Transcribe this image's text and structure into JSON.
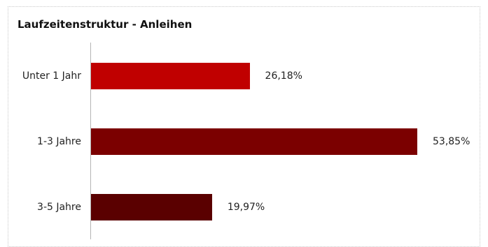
{
  "chart_data": {
    "type": "bar",
    "orientation": "horizontal",
    "title": "Laufzeitenstruktur - Anleihen",
    "categories": [
      "Unter 1 Jahr",
      "1-3 Jahre",
      "3-5 Jahre"
    ],
    "values": [
      26.18,
      53.85,
      19.97
    ],
    "value_labels": [
      "26,18%",
      "53,85%",
      "19,97%"
    ],
    "colors": [
      "#c00000",
      "#7b0000",
      "#5a0000"
    ],
    "xlabel": "",
    "ylabel": "",
    "grid": false,
    "legend": "none"
  }
}
